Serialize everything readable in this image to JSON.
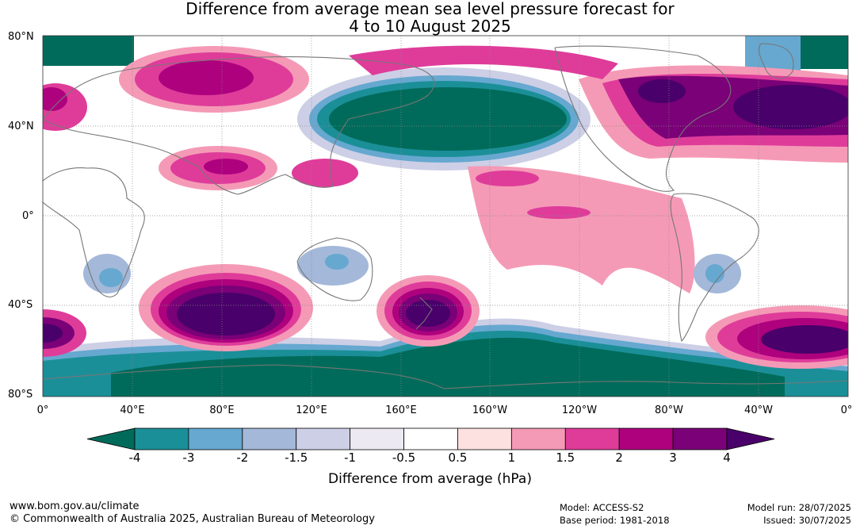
{
  "title_line1": "Difference from average mean sea level pressure forecast for",
  "title_line2": "4 to 10 August 2025",
  "lat_labels": [
    "80°N",
    "40°N",
    "0°",
    "40°S",
    "80°S"
  ],
  "lon_labels": [
    "0°",
    "40°E",
    "80°E",
    "120°E",
    "160°E",
    "160°W",
    "120°W",
    "80°W",
    "40°W",
    "0°"
  ],
  "colorbar": {
    "title": "Difference from average (hPa)",
    "tick_labels": [
      "-4",
      "-3",
      "-2",
      "-1.5",
      "-1",
      "-0.5",
      "0.5",
      "1",
      "1.5",
      "2",
      "3",
      "4"
    ],
    "colors": [
      "#006b5a",
      "#1b8f98",
      "#66a8d0",
      "#a4b8d9",
      "#cdcfe6",
      "#ece9f2",
      "#ffffff",
      "#fde0e0",
      "#f59ab6",
      "#df3c9a",
      "#ae017e",
      "#7a0177",
      "#49006a"
    ]
  },
  "footer": {
    "site": "www.bom.gov.au/climate",
    "copyright": "© Commonwealth of Australia 2025, Australian Bureau of Meteorology",
    "model": "Model: ACCESS-S2",
    "base_period": "Base period: 1981-2018",
    "model_run": "Model run: 28/07/2025",
    "issued": "Issued: 30/07/2025"
  },
  "anomaly_regions": [
    {
      "name": "north-atlantic-high",
      "value": 4,
      "color": "#49006a"
    },
    {
      "name": "north-america-high",
      "value": 3,
      "color": "#7a0177"
    },
    {
      "name": "north-pacific-low",
      "value": -4,
      "color": "#006b5a"
    },
    {
      "name": "southern-ocean-low",
      "value": -4,
      "color": "#006b5a"
    },
    {
      "name": "south-indian-high",
      "value": 4,
      "color": "#49006a"
    },
    {
      "name": "new-zealand-high",
      "value": 4,
      "color": "#49006a"
    },
    {
      "name": "south-atlantic-high",
      "value": 4,
      "color": "#49006a"
    },
    {
      "name": "siberia-high",
      "value": 2,
      "color": "#ae017e"
    },
    {
      "name": "india-high",
      "value": 2,
      "color": "#ae017e"
    },
    {
      "name": "tropical-pacific-high",
      "value": 1,
      "color": "#f59ab6"
    }
  ]
}
